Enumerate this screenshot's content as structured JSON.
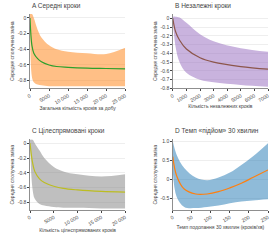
{
  "chart_data": [
    {
      "type": "line",
      "title": "A Середні кроки",
      "xlabel": "Загальна кількість кроків за добу",
      "ylabel": "Середня сполучена зміна",
      "x": [
        0,
        500,
        1000,
        2000,
        3000,
        5000,
        7000,
        10000,
        15000,
        20000,
        25000
      ],
      "values": [
        0.0,
        -0.35,
        -0.45,
        -0.52,
        -0.56,
        -0.6,
        -0.62,
        -0.63,
        -0.64,
        -0.645,
        -0.65
      ],
      "upper": [
        0.05,
        0.05,
        0.0,
        -0.15,
        -0.25,
        -0.35,
        -0.4,
        -0.43,
        -0.45,
        -0.46,
        -0.38
      ],
      "lower": [
        0.0,
        -0.75,
        -0.82,
        -0.85,
        -0.86,
        -0.87,
        -0.87,
        -0.87,
        -0.87,
        -0.87,
        -0.87
      ],
      "xlim": [
        0,
        25000
      ],
      "ylim": [
        -0.9,
        0.05
      ],
      "xticks": [
        0,
        5000,
        {
          "value": 10000,
          "label": "10 000"
        },
        {
          "value": 15000,
          "label": "15 000"
        },
        {
          "value": 20000,
          "label": "20 000"
        },
        {
          "value": 25000,
          "label": "25 000"
        }
      ],
      "yticks": [
        0,
        -0.2,
        -0.4,
        -0.6,
        -0.8
      ],
      "grid": "y"
    },
    {
      "type": "line",
      "title": "B Незалежні кроки",
      "xlabel": "Кількість незалежних кроків",
      "ylabel": "Середня сполучена зміна",
      "x": [
        0,
        200,
        500,
        1000,
        2000,
        3000,
        5000,
        7000
      ],
      "values": [
        0.0,
        -0.15,
        -0.25,
        -0.35,
        -0.45,
        -0.5,
        -0.55,
        -0.58
      ],
      "upper": [
        0.02,
        0.02,
        0.01,
        -0.05,
        -0.18,
        -0.26,
        -0.34,
        -0.38
      ],
      "lower": [
        -0.02,
        -0.32,
        -0.5,
        -0.62,
        -0.7,
        -0.73,
        -0.76,
        -0.78
      ],
      "xlim": [
        0,
        7000
      ],
      "ylim": [
        -0.8,
        0.05
      ],
      "xticks": [
        0,
        1000,
        2000,
        3000,
        4000,
        5000,
        6000,
        7000
      ],
      "yticks": [
        0,
        -0.1,
        -0.2,
        -0.3,
        -0.4,
        -0.5,
        -0.6,
        -0.7,
        -0.8
      ],
      "grid": "y"
    },
    {
      "type": "line",
      "title": "C Цілеспрямовані кроки",
      "xlabel": "Кількість цілеспрямованих кроків",
      "ylabel": "Середня сполучена зміна",
      "x": [
        0,
        500,
        1000,
        2000,
        3000,
        5000,
        7000,
        10000,
        15000,
        20000
      ],
      "values": [
        0.0,
        -0.25,
        -0.38,
        -0.48,
        -0.53,
        -0.58,
        -0.61,
        -0.63,
        -0.65,
        -0.66
      ],
      "upper": [
        0.05,
        0.05,
        0.0,
        -0.1,
        -0.2,
        -0.32,
        -0.38,
        -0.42,
        -0.45,
        -0.42
      ],
      "lower": [
        0.0,
        -0.6,
        -0.75,
        -0.82,
        -0.84,
        -0.86,
        -0.87,
        -0.87,
        -0.88,
        -0.88
      ],
      "xlim": [
        0,
        20000
      ],
      "ylim": [
        -0.9,
        0.05
      ],
      "xticks": [
        0,
        5000,
        {
          "value": 10000,
          "label": "10 000"
        },
        {
          "value": 15000,
          "label": "15 000"
        },
        {
          "value": 20000,
          "label": "20 000"
        }
      ],
      "yticks": [
        0,
        -0.2,
        -0.4,
        -0.6,
        -0.8
      ],
      "grid": "y"
    },
    {
      "type": "line",
      "title": "D Темп «підйом» 30 хвилин",
      "xlabel": "Темп подолання 30 хвилин (кроків/хв)",
      "ylabel": "Середня сполучена зміна",
      "x": [
        0,
        10,
        30,
        60,
        90,
        120,
        150,
        180,
        210,
        250
      ],
      "values": [
        0.6,
        0.1,
        -0.25,
        -0.38,
        -0.38,
        -0.32,
        -0.22,
        -0.1,
        0.05,
        0.25
      ],
      "upper": [
        1.0,
        0.65,
        0.3,
        0.05,
        -0.02,
        0.05,
        0.18,
        0.38,
        0.6,
        0.95
      ],
      "lower": [
        0.2,
        -0.45,
        -0.72,
        -0.75,
        -0.72,
        -0.68,
        -0.62,
        -0.58,
        -0.55,
        -0.52
      ],
      "xlim": [
        0,
        250
      ],
      "ylim": [
        -0.8,
        1.05
      ],
      "xticks": [
        0,
        50,
        100,
        150,
        200,
        250
      ],
      "yticks": [
        {
          "value": 1.0,
          "label": "1.0"
        },
        {
          "value": 0.5,
          "label": "0.5"
        },
        0,
        {
          "value": -0.5,
          "label": "-0.5"
        }
      ],
      "grid": "y"
    }
  ]
}
